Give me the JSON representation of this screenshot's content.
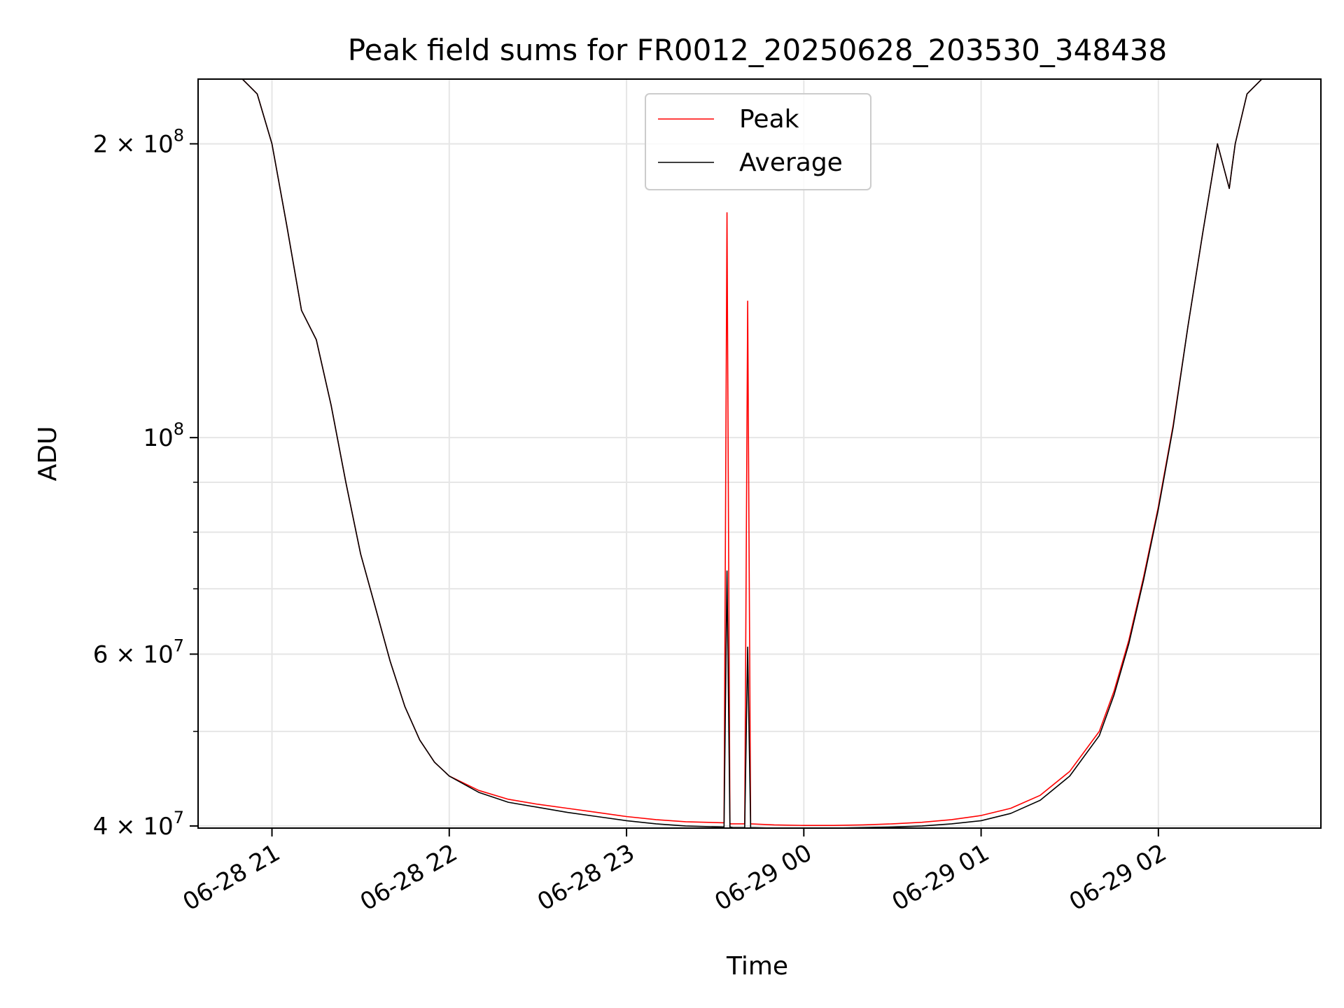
{
  "chart_data": {
    "type": "line",
    "title": "Peak field sums for FR0012_20250628_203530_348438",
    "xlabel": "Time",
    "ylabel": "ADU",
    "y_scale": "log",
    "ylim": [
      39800000,
      233000000
    ],
    "xlim": [
      "2025-06-28 20:35",
      "2025-06-29 02:55"
    ],
    "grid": true,
    "legend_position": "top-center",
    "x_ticks": [
      {
        "value": "2025-06-28 21:00",
        "label": "06-28 21"
      },
      {
        "value": "2025-06-28 22:00",
        "label": "06-28 22"
      },
      {
        "value": "2025-06-28 23:00",
        "label": "06-28 23"
      },
      {
        "value": "2025-06-29 00:00",
        "label": "06-29 00"
      },
      {
        "value": "2025-06-29 01:00",
        "label": "06-29 01"
      },
      {
        "value": "2025-06-29 02:00",
        "label": "06-29 02"
      }
    ],
    "y_major_ticks": [
      {
        "value": 40000000,
        "mantissa": "4 × 10",
        "exp": "7"
      },
      {
        "value": 60000000,
        "mantissa": "6 × 10",
        "exp": "7"
      },
      {
        "value": 100000000,
        "mantissa": "10",
        "exp": "8"
      },
      {
        "value": 200000000,
        "mantissa": "2 × 10",
        "exp": "8"
      }
    ],
    "y_minor_grid": [
      50000000,
      70000000,
      80000000,
      90000000
    ],
    "series": [
      {
        "name": "Peak",
        "color": "#ff0000",
        "x": [
          "2025-06-28 20:35",
          "2025-06-28 20:50",
          "2025-06-28 20:55",
          "2025-06-28 21:00",
          "2025-06-28 21:05",
          "2025-06-28 21:10",
          "2025-06-28 21:15",
          "2025-06-28 21:20",
          "2025-06-28 21:25",
          "2025-06-28 21:30",
          "2025-06-28 21:35",
          "2025-06-28 21:40",
          "2025-06-28 21:45",
          "2025-06-28 21:50",
          "2025-06-28 21:55",
          "2025-06-28 22:00",
          "2025-06-28 22:10",
          "2025-06-28 22:20",
          "2025-06-28 22:30",
          "2025-06-28 22:40",
          "2025-06-28 22:50",
          "2025-06-28 23:00",
          "2025-06-28 23:10",
          "2025-06-28 23:20",
          "2025-06-28 23:33",
          "2025-06-28 23:34",
          "2025-06-28 23:35",
          "2025-06-28 23:36",
          "2025-06-28 23:40",
          "2025-06-28 23:41",
          "2025-06-28 23:42",
          "2025-06-28 23:50",
          "2025-06-29 00:00",
          "2025-06-29 00:10",
          "2025-06-29 00:20",
          "2025-06-29 00:30",
          "2025-06-29 00:40",
          "2025-06-29 00:50",
          "2025-06-29 01:00",
          "2025-06-29 01:10",
          "2025-06-29 01:20",
          "2025-06-29 01:30",
          "2025-06-29 01:40",
          "2025-06-29 01:45",
          "2025-06-29 01:50",
          "2025-06-29 01:55",
          "2025-06-29 02:00",
          "2025-06-29 02:05",
          "2025-06-29 02:10",
          "2025-06-29 02:15",
          "2025-06-29 02:20",
          "2025-06-29 02:24",
          "2025-06-29 02:25",
          "2025-06-29 02:26",
          "2025-06-29 02:30",
          "2025-06-29 02:35",
          "2025-06-29 02:55"
        ],
        "y": [
          233000000,
          233000000,
          225000000,
          200000000,
          165000000,
          135000000,
          126000000,
          108000000,
          90000000,
          76000000,
          67000000,
          59000000,
          53000000,
          49000000,
          46500000,
          45000000,
          43500000,
          42600000,
          42100000,
          41700000,
          41300000,
          40900000,
          40600000,
          40400000,
          40300000,
          170000000,
          40200000,
          40200000,
          40200000,
          138000000,
          40200000,
          40100000,
          40050000,
          40050000,
          40100000,
          40200000,
          40350000,
          40600000,
          41000000,
          41700000,
          43000000,
          45500000,
          50000000,
          55000000,
          62000000,
          72000000,
          85000000,
          103000000,
          130000000,
          162000000,
          200000000,
          180000000,
          190000000,
          200000000,
          225000000,
          233000000,
          233000000
        ]
      },
      {
        "name": "Average",
        "color": "#000000",
        "x": [
          "2025-06-28 20:35",
          "2025-06-28 20:50",
          "2025-06-28 20:55",
          "2025-06-28 21:00",
          "2025-06-28 21:05",
          "2025-06-28 21:10",
          "2025-06-28 21:15",
          "2025-06-28 21:20",
          "2025-06-28 21:25",
          "2025-06-28 21:30",
          "2025-06-28 21:35",
          "2025-06-28 21:40",
          "2025-06-28 21:45",
          "2025-06-28 21:50",
          "2025-06-28 21:55",
          "2025-06-28 22:00",
          "2025-06-28 22:10",
          "2025-06-28 22:20",
          "2025-06-28 22:30",
          "2025-06-28 22:40",
          "2025-06-28 22:50",
          "2025-06-28 23:00",
          "2025-06-28 23:10",
          "2025-06-28 23:20",
          "2025-06-28 23:33",
          "2025-06-28 23:34",
          "2025-06-28 23:35",
          "2025-06-28 23:36",
          "2025-06-28 23:40",
          "2025-06-28 23:41",
          "2025-06-28 23:42",
          "2025-06-28 23:50",
          "2025-06-29 00:00",
          "2025-06-29 00:10",
          "2025-06-29 00:20",
          "2025-06-29 00:30",
          "2025-06-29 00:40",
          "2025-06-29 00:50",
          "2025-06-29 01:00",
          "2025-06-29 01:10",
          "2025-06-29 01:20",
          "2025-06-29 01:30",
          "2025-06-29 01:40",
          "2025-06-29 01:45",
          "2025-06-29 01:50",
          "2025-06-29 01:55",
          "2025-06-29 02:00",
          "2025-06-29 02:05",
          "2025-06-29 02:10",
          "2025-06-29 02:15",
          "2025-06-29 02:20",
          "2025-06-29 02:24",
          "2025-06-29 02:25",
          "2025-06-29 02:26",
          "2025-06-29 02:30",
          "2025-06-29 02:35",
          "2025-06-29 02:55"
        ],
        "y": [
          233000000,
          233000000,
          225000000,
          200000000,
          165000000,
          135000000,
          126000000,
          108000000,
          90000000,
          76000000,
          67000000,
          59000000,
          53000000,
          49000000,
          46500000,
          45000000,
          43300000,
          42300000,
          41800000,
          41300000,
          40900000,
          40500000,
          40200000,
          40000000,
          39900000,
          73000000,
          39900000,
          39850000,
          39850000,
          61000000,
          39850000,
          39800000,
          39800000,
          39800000,
          39850000,
          39900000,
          40000000,
          40200000,
          40500000,
          41200000,
          42500000,
          45000000,
          49500000,
          54500000,
          61500000,
          71500000,
          84500000,
          102500000,
          130000000,
          162000000,
          200000000,
          180000000,
          190000000,
          200000000,
          225000000,
          233000000,
          233000000
        ]
      }
    ]
  }
}
